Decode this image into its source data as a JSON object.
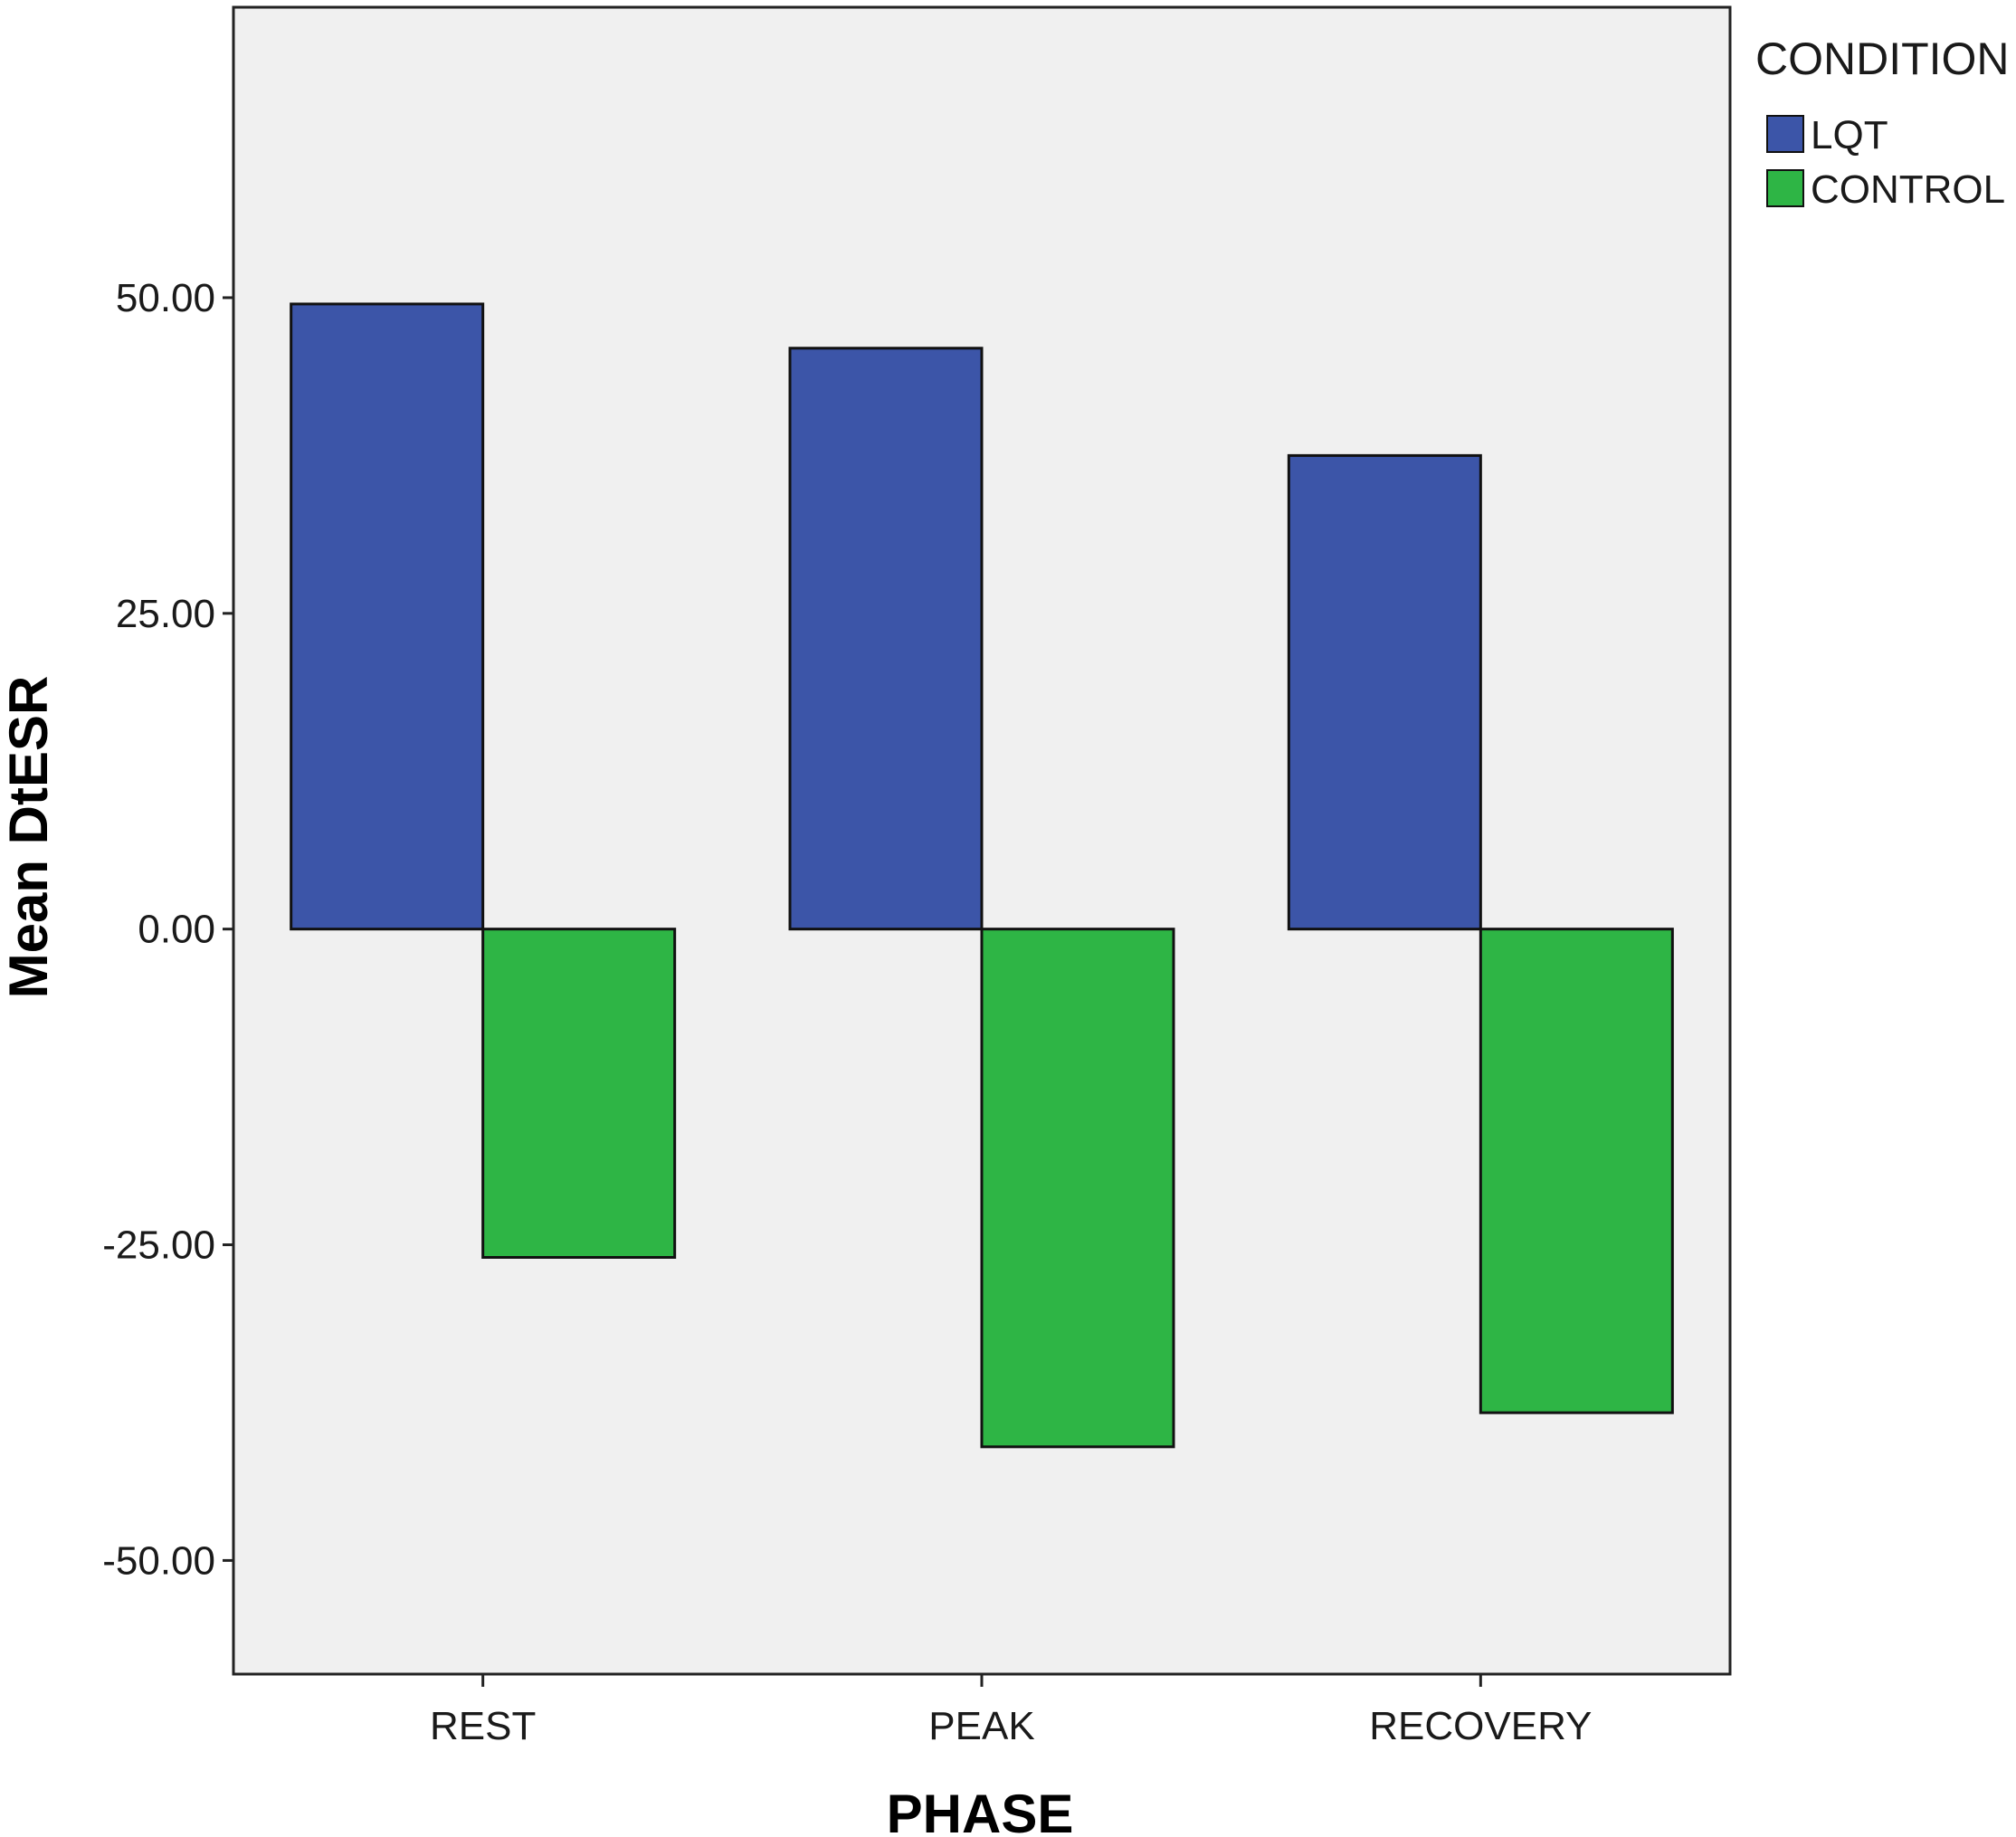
{
  "chart_data": {
    "type": "bar",
    "title": "",
    "xlabel": "PHASE",
    "ylabel": "Mean DtESR",
    "categories": [
      "REST",
      "PEAK",
      "RECOVERY"
    ],
    "series": [
      {
        "name": "LQT",
        "values": [
          49.5,
          46.0,
          37.5
        ]
      },
      {
        "name": "CONTROL",
        "values": [
          -26.0,
          -41.0,
          -38.3
        ]
      }
    ],
    "ylim": [
      -59,
      73
    ],
    "yticks": [
      50,
      25,
      0,
      -25,
      -50
    ],
    "ytick_labels": [
      "50.00",
      "25.00",
      "0.00",
      "-25.00",
      "-50.00"
    ],
    "legend": {
      "title": "CONDITION",
      "placement": "top-right"
    },
    "grid": false,
    "colors": {
      "LQT": "#3c55a8",
      "CONTROL": "#2eb545",
      "plot_bg": "#f0f0f0"
    }
  }
}
